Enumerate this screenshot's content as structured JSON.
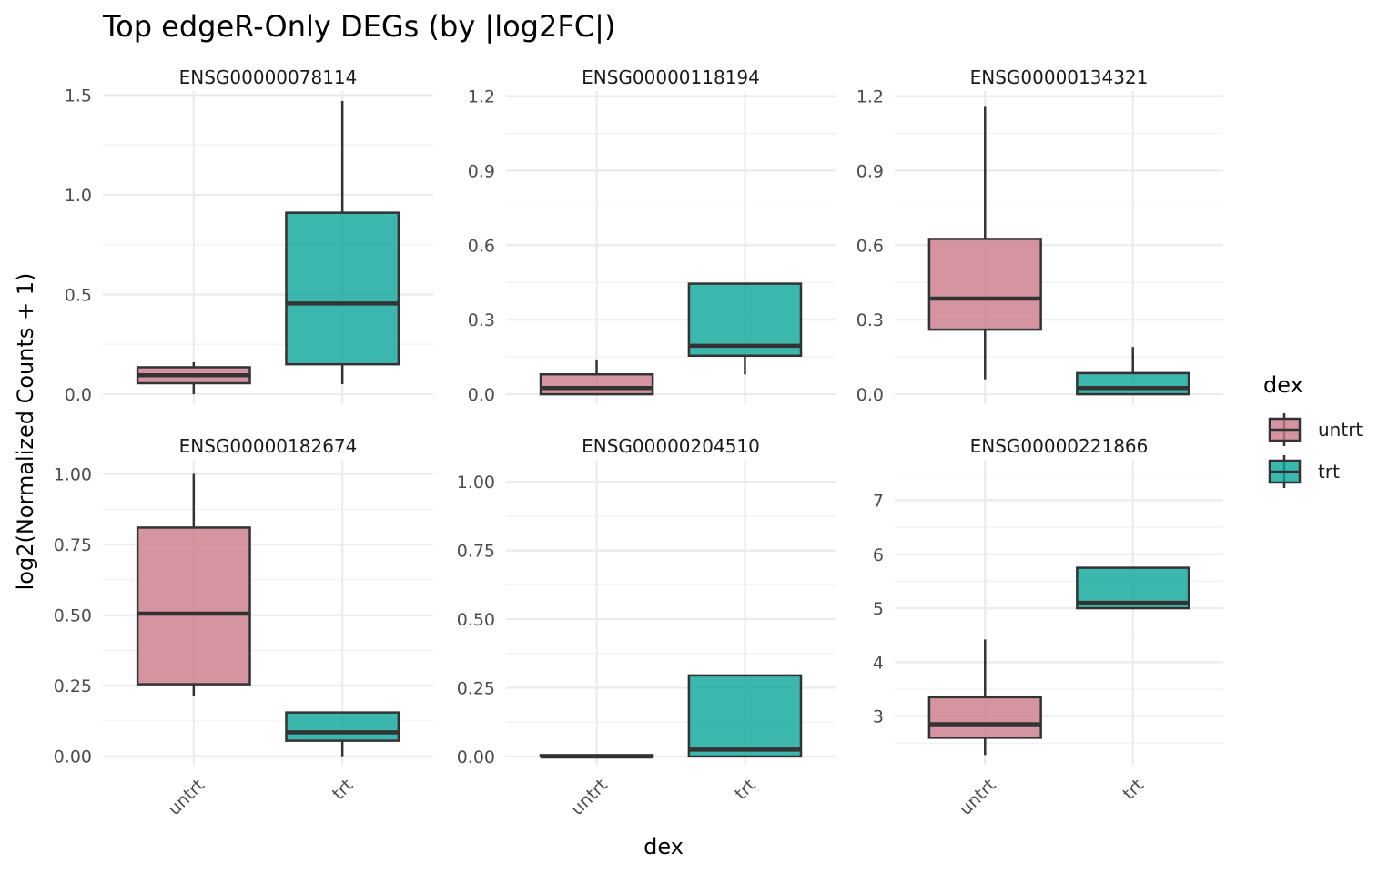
{
  "chart_data": {
    "type": "box",
    "title": "Top edgeR-Only DEGs (by |log2FC|)",
    "xlabel": "dex",
    "ylabel": "log2(Normalized Counts + 1)",
    "categories": [
      "untrt",
      "trt"
    ],
    "legend": {
      "title": "dex",
      "placement": "right",
      "entries": [
        {
          "label": "untrt",
          "color": "#c97a8a"
        },
        {
          "label": "trt",
          "color": "#0aa598"
        }
      ]
    },
    "grid": true,
    "facets": [
      {
        "gene": "ENSG00000078114",
        "ylim": [
          -0.05,
          1.52
        ],
        "yticks": [
          0.0,
          0.5,
          1.0,
          1.5
        ],
        "ytick_labels": [
          "0.0",
          "0.5",
          "1.0",
          "1.5"
        ],
        "boxes": [
          {
            "group": "untrt",
            "min": 0.0,
            "q1": 0.055,
            "median": 0.095,
            "q3": 0.135,
            "max": 0.16
          },
          {
            "group": "trt",
            "min": 0.05,
            "q1": 0.15,
            "median": 0.455,
            "q3": 0.91,
            "max": 1.47
          }
        ]
      },
      {
        "gene": "ENSG00000118194",
        "ylim": [
          -0.04,
          1.22
        ],
        "yticks": [
          0.0,
          0.3,
          0.6,
          0.9,
          1.2
        ],
        "ytick_labels": [
          "0.0",
          "0.3",
          "0.6",
          "0.9",
          "1.2"
        ],
        "boxes": [
          {
            "group": "untrt",
            "min": 0.0,
            "q1": 0.0,
            "median": 0.025,
            "q3": 0.08,
            "max": 0.14
          },
          {
            "group": "trt",
            "min": 0.08,
            "q1": 0.155,
            "median": 0.195,
            "q3": 0.445,
            "max": 0.445
          }
        ]
      },
      {
        "gene": "ENSG00000134321",
        "ylim": [
          -0.04,
          1.22
        ],
        "yticks": [
          0.0,
          0.3,
          0.6,
          0.9,
          1.2
        ],
        "ytick_labels": [
          "0.0",
          "0.3",
          "0.6",
          "0.9",
          "1.2"
        ],
        "boxes": [
          {
            "group": "untrt",
            "min": 0.06,
            "q1": 0.26,
            "median": 0.385,
            "q3": 0.625,
            "max": 1.16
          },
          {
            "group": "trt",
            "min": 0.0,
            "q1": 0.0,
            "median": 0.025,
            "q3": 0.085,
            "max": 0.19
          }
        ]
      },
      {
        "gene": "ENSG00000182674",
        "ylim": [
          -0.03,
          1.05
        ],
        "yticks": [
          0.0,
          0.25,
          0.5,
          0.75,
          1.0
        ],
        "ytick_labels": [
          "0.00",
          "0.25",
          "0.50",
          "0.75",
          "1.00"
        ],
        "boxes": [
          {
            "group": "untrt",
            "min": 0.215,
            "q1": 0.255,
            "median": 0.505,
            "q3": 0.81,
            "max": 1.0
          },
          {
            "group": "trt",
            "min": 0.0,
            "q1": 0.055,
            "median": 0.085,
            "q3": 0.155,
            "max": 0.155
          }
        ]
      },
      {
        "gene": "ENSG00000204510",
        "ylim": [
          -0.03,
          1.08
        ],
        "yticks": [
          0.0,
          0.25,
          0.5,
          0.75,
          1.0
        ],
        "ytick_labels": [
          "0.00",
          "0.25",
          "0.50",
          "0.75",
          "1.00"
        ],
        "boxes": [
          {
            "group": "untrt",
            "min": 0.0,
            "q1": 0.0,
            "median": 0.0,
            "q3": 0.005,
            "max": 0.005
          },
          {
            "group": "trt",
            "min": 0.0,
            "q1": 0.0,
            "median": 0.025,
            "q3": 0.295,
            "max": 0.295
          }
        ]
      },
      {
        "gene": "ENSG00000221866",
        "ylim": [
          2.1,
          7.75
        ],
        "yticks": [
          3,
          4,
          5,
          6,
          7
        ],
        "ytick_labels": [
          "3",
          "4",
          "5",
          "6",
          "7"
        ],
        "boxes": [
          {
            "group": "untrt",
            "min": 2.28,
            "q1": 2.6,
            "median": 2.85,
            "q3": 3.35,
            "max": 4.42
          },
          {
            "group": "trt",
            "min": 5.0,
            "q1": 5.0,
            "median": 5.1,
            "q3": 5.75,
            "max": 5.75
          }
        ]
      }
    ]
  }
}
